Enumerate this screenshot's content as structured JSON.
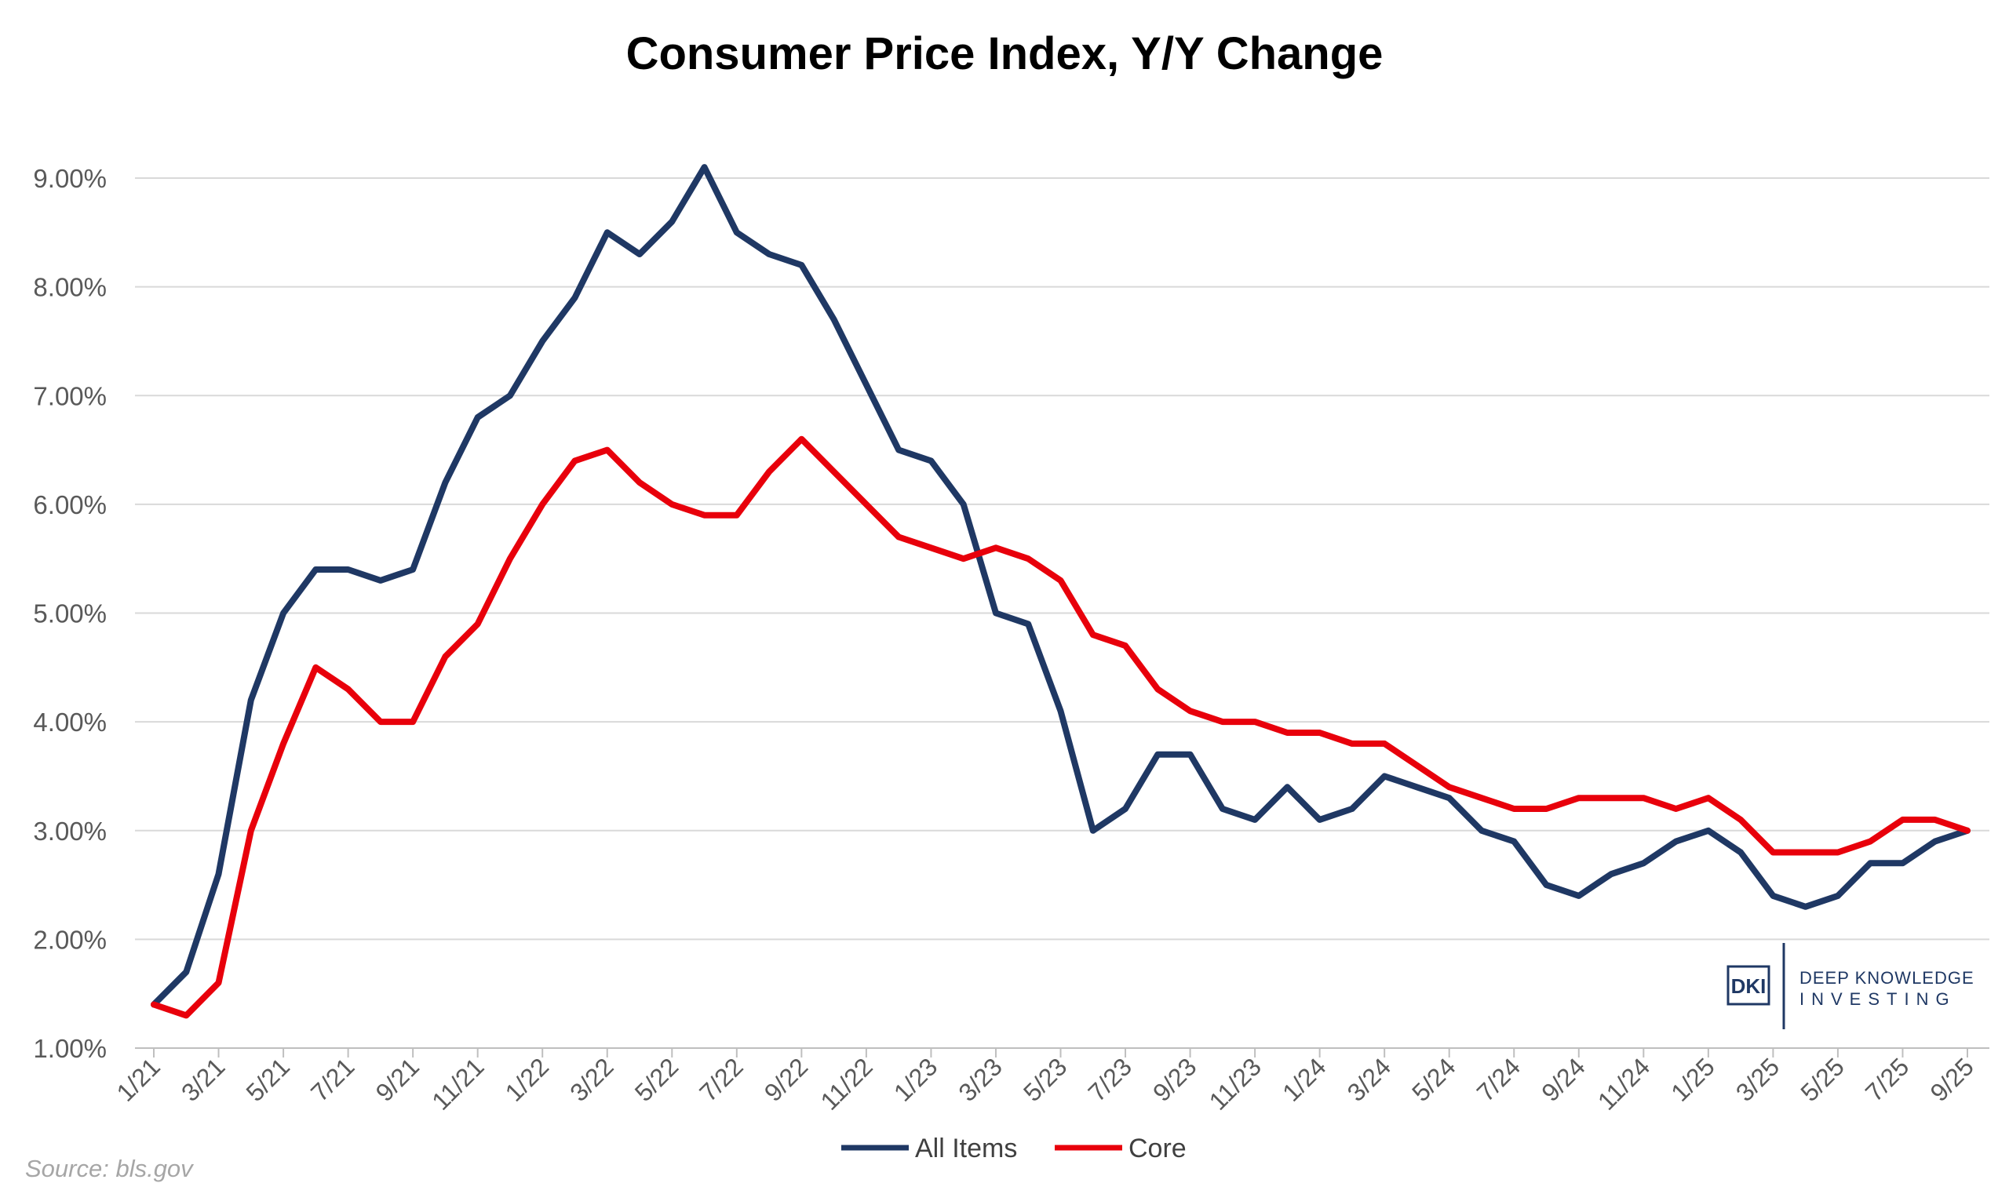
{
  "chart_data": {
    "type": "line",
    "title": "Consumer Price Index, Y/Y Change",
    "ylim": [
      1.0,
      9.0
    ],
    "yticks": [
      "1.00%",
      "2.00%",
      "3.00%",
      "4.00%",
      "5.00%",
      "6.00%",
      "7.00%",
      "8.00%",
      "9.00%"
    ],
    "ytick_values": [
      1,
      2,
      3,
      4,
      5,
      6,
      7,
      8,
      9
    ],
    "x": [
      "1/21",
      "2/21",
      "3/21",
      "4/21",
      "5/21",
      "6/21",
      "7/21",
      "8/21",
      "9/21",
      "10/21",
      "11/21",
      "12/21",
      "1/22",
      "2/22",
      "3/22",
      "4/22",
      "5/22",
      "6/22",
      "7/22",
      "8/22",
      "9/22",
      "10/22",
      "11/22",
      "12/22",
      "1/23",
      "2/23",
      "3/23",
      "4/23",
      "5/23",
      "6/23",
      "7/23",
      "8/23",
      "9/23",
      "10/23",
      "11/23",
      "12/23",
      "1/24",
      "2/24",
      "3/24",
      "4/24",
      "5/24",
      "6/24",
      "7/24",
      "8/24",
      "9/24",
      "10/24",
      "11/24",
      "12/24",
      "1/25",
      "2/25",
      "3/25",
      "4/25",
      "5/25",
      "6/25",
      "7/25",
      "8/25",
      "9/25"
    ],
    "xtick_labels": [
      "1/21",
      "3/21",
      "5/21",
      "7/21",
      "9/21",
      "11/21",
      "1/22",
      "3/22",
      "5/22",
      "7/22",
      "9/22",
      "11/22",
      "1/23",
      "3/23",
      "5/23",
      "7/23",
      "9/23",
      "11/23",
      "1/24",
      "3/24",
      "5/24",
      "7/24",
      "9/24",
      "11/24",
      "1/25",
      "3/25",
      "5/25",
      "7/25",
      "9/25"
    ],
    "series": [
      {
        "name": "All Items",
        "color": "#1f3864",
        "values": [
          1.4,
          1.7,
          2.6,
          4.2,
          5.0,
          5.4,
          5.4,
          5.3,
          5.4,
          6.2,
          6.8,
          7.0,
          7.5,
          7.9,
          8.5,
          8.3,
          8.6,
          9.1,
          8.5,
          8.3,
          8.2,
          7.7,
          7.1,
          6.5,
          6.4,
          6.0,
          5.0,
          4.9,
          4.1,
          3.0,
          3.2,
          3.7,
          3.7,
          3.2,
          3.1,
          3.4,
          3.1,
          3.2,
          3.5,
          3.4,
          3.3,
          3.0,
          2.9,
          2.5,
          2.4,
          2.6,
          2.7,
          2.9,
          3.0,
          2.8,
          2.4,
          2.3,
          2.4,
          2.7,
          2.7,
          2.9,
          3.0
        ]
      },
      {
        "name": "Core",
        "color": "#e8000b",
        "values": [
          1.4,
          1.3,
          1.6,
          3.0,
          3.8,
          4.5,
          4.3,
          4.0,
          4.0,
          4.6,
          4.9,
          5.5,
          6.0,
          6.4,
          6.5,
          6.2,
          6.0,
          5.9,
          5.9,
          6.3,
          6.6,
          6.3,
          6.0,
          5.7,
          5.6,
          5.5,
          5.6,
          5.5,
          5.3,
          4.8,
          4.7,
          4.3,
          4.1,
          4.0,
          4.0,
          3.9,
          3.9,
          3.8,
          3.8,
          3.6,
          3.4,
          3.3,
          3.2,
          3.2,
          3.3,
          3.3,
          3.3,
          3.2,
          3.3,
          3.1,
          2.8,
          2.8,
          2.8,
          2.9,
          3.1,
          3.1,
          3.0
        ]
      }
    ],
    "grid": true,
    "legend": "bottom-center"
  },
  "source": "Source: bls.gov",
  "logo": {
    "box_text": "DKI",
    "line1": "DEEP KNOWLEDGE",
    "line2": "INVESTING",
    "color": "#1f3864"
  }
}
